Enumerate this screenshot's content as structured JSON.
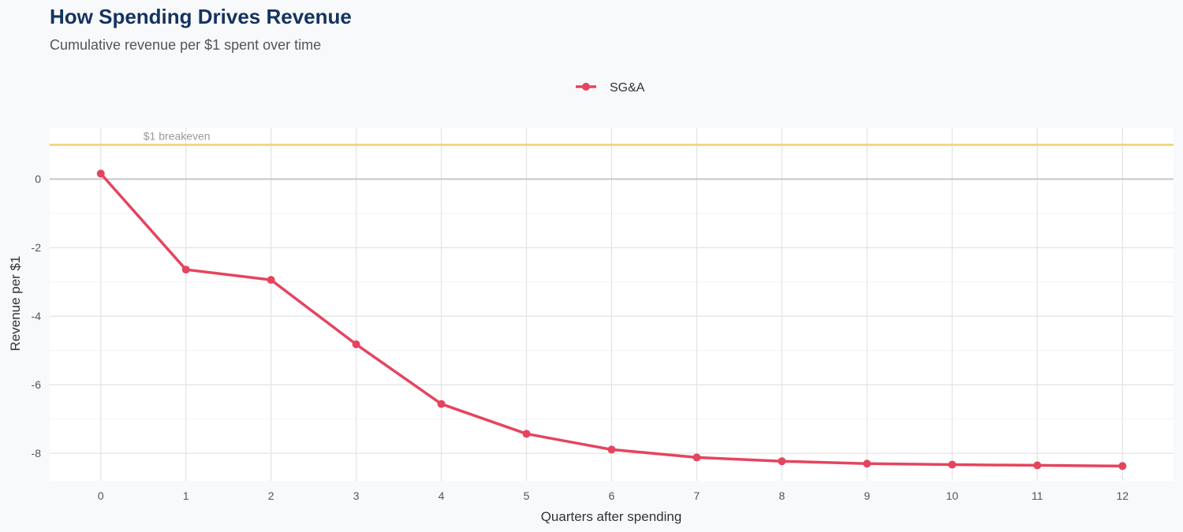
{
  "chart_data": {
    "type": "line",
    "title": "How Spending Drives Revenue",
    "subtitle": "Cumulative revenue per $1 spent over time",
    "xlabel": "Quarters after spending",
    "ylabel": "Revenue per $1",
    "x": [
      0,
      1,
      2,
      3,
      4,
      5,
      6,
      7,
      8,
      9,
      10,
      11,
      12
    ],
    "series": [
      {
        "name": "SG&A",
        "color": "#e5445f",
        "values": [
          0.16,
          -2.64,
          -2.94,
          -4.82,
          -6.56,
          -7.43,
          -7.89,
          -8.12,
          -8.23,
          -8.3,
          -8.33,
          -8.35,
          -8.37
        ]
      }
    ],
    "xlim": [
      -0.6,
      12.6
    ],
    "ylim": [
      -8.8,
      1.5
    ],
    "yticks": [
      0,
      -2,
      -4,
      -6,
      -8
    ],
    "xticks": [
      0,
      1,
      2,
      3,
      4,
      5,
      6,
      7,
      8,
      9,
      10,
      11,
      12
    ],
    "reference_line": {
      "y": 1,
      "label": "$1 breakeven",
      "color": "#f7d06f"
    },
    "zero_line": {
      "y": 0,
      "color": "#c8c8c8"
    },
    "grid": true,
    "legend_position": "top"
  }
}
